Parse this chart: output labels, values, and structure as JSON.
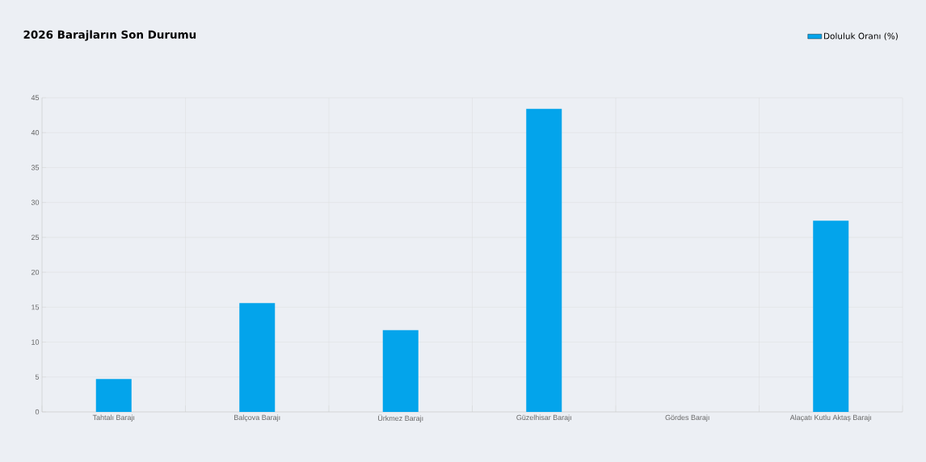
{
  "chart_data": {
    "type": "bar",
    "title": "2026 Barajların Son Durumu",
    "categories": [
      "Tahtalı Barajı",
      "Balçova Barajı",
      "Ürkmez Barajı",
      "Güzelhisar Barajı",
      "Gördes Barajı",
      "Alaçatı Kutlu Aktaş Barajı"
    ],
    "series": [
      {
        "name": "Doluluk Oranı (%)",
        "color": "#03a4eb",
        "values": [
          4.7,
          15.6,
          11.7,
          43.4,
          0,
          27.4
        ]
      }
    ],
    "ylim": [
      0,
      45
    ],
    "yticks": [
      0,
      5,
      10,
      15,
      20,
      25,
      30,
      35,
      40,
      45
    ],
    "grid": true,
    "legend": "top right"
  }
}
